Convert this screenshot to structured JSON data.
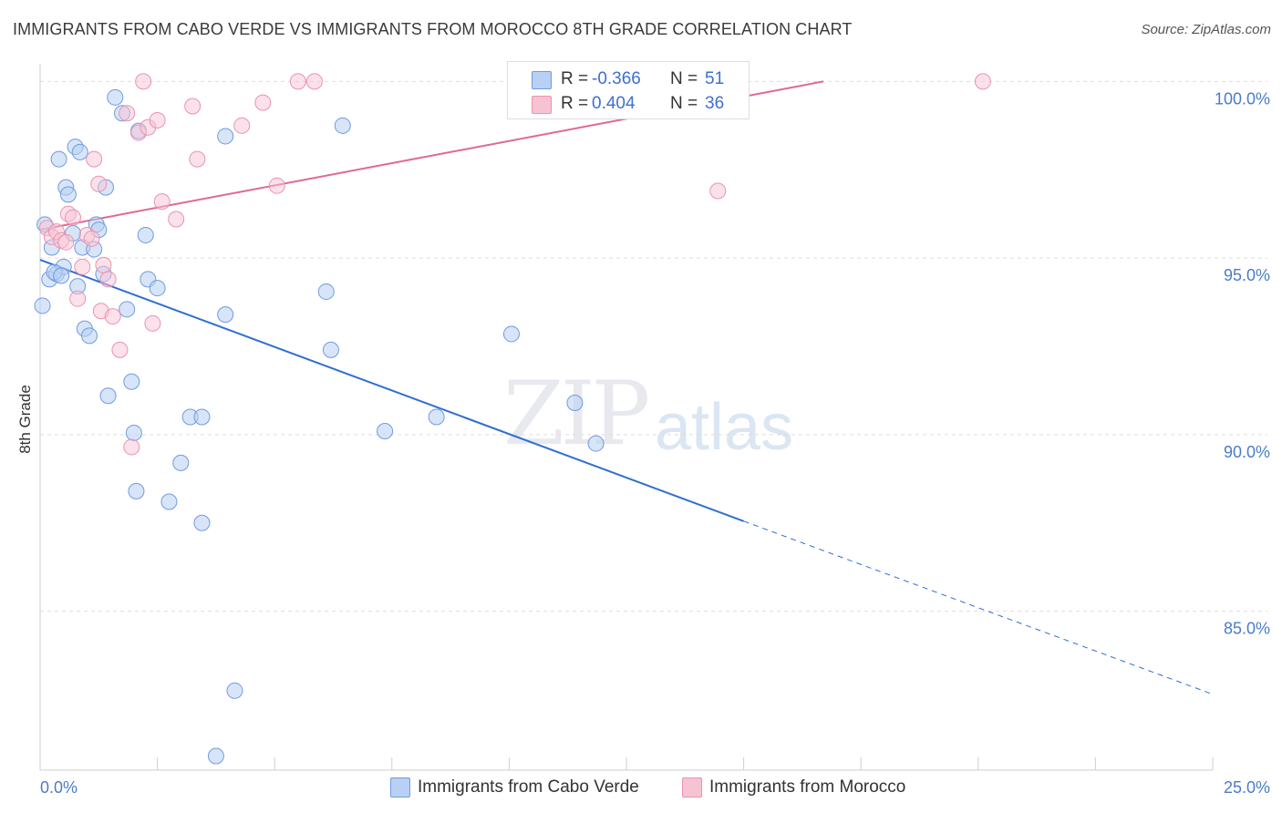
{
  "header": {
    "title": "IMMIGRANTS FROM CABO VERDE VS IMMIGRANTS FROM MOROCCO 8TH GRADE CORRELATION CHART",
    "source": "Source: ZipAtlas.com"
  },
  "watermark": {
    "zip": "ZIP",
    "atlas": "atlas"
  },
  "legend": {
    "rows": [
      {
        "r_label": "R =",
        "r_value": "-0.366",
        "n_label": "N =",
        "n_value": "51"
      },
      {
        "r_label": "R =",
        "r_value": "0.404",
        "n_label": "N =",
        "n_value": "36"
      }
    ]
  },
  "bottom_legend": {
    "cabo_verde": "Immigrants from Cabo Verde",
    "morocco": "Immigrants from Morocco"
  },
  "colors": {
    "cabo_verde_fill": "#b8d0f3",
    "cabo_verde_stroke": "#6f9be0",
    "cabo_verde_line": "#2f6fd0",
    "morocco_fill": "#f7c3d3",
    "morocco_stroke": "#ea93b0",
    "morocco_line": "#e06891",
    "grid": "#dddddd",
    "tick_text": "#4a7cc7"
  },
  "chart_data": {
    "type": "scatter",
    "title": "IMMIGRANTS FROM CABO VERDE VS IMMIGRANTS FROM MOROCCO 8TH GRADE CORRELATION CHART",
    "xlabel": "",
    "ylabel": "8th Grade",
    "xlim": [
      0,
      25
    ],
    "ylim": [
      80.5,
      100.5
    ],
    "x_tick_labels": [
      "0.0%",
      "25.0%"
    ],
    "y_ticks": [
      85,
      90,
      95,
      100
    ],
    "y_tick_labels": [
      "85.0%",
      "90.0%",
      "95.0%",
      "100.0%"
    ],
    "series": [
      {
        "name": "Immigrants from Cabo Verde",
        "r": -0.366,
        "n": 51,
        "points": [
          [
            0.05,
            93.65
          ],
          [
            0.1,
            95.95
          ],
          [
            0.2,
            94.4
          ],
          [
            0.25,
            95.3
          ],
          [
            0.35,
            94.55
          ],
          [
            0.4,
            97.8
          ],
          [
            0.5,
            94.75
          ],
          [
            0.55,
            97.0
          ],
          [
            0.6,
            96.8
          ],
          [
            0.7,
            95.7
          ],
          [
            0.75,
            98.15
          ],
          [
            0.8,
            94.2
          ],
          [
            0.85,
            98.0
          ],
          [
            0.9,
            95.3
          ],
          [
            0.95,
            93.0
          ],
          [
            1.05,
            92.8
          ],
          [
            1.15,
            95.25
          ],
          [
            1.2,
            95.95
          ],
          [
            1.25,
            95.8
          ],
          [
            1.35,
            94.55
          ],
          [
            1.4,
            97.0
          ],
          [
            1.45,
            91.1
          ],
          [
            1.6,
            99.55
          ],
          [
            1.75,
            99.1
          ],
          [
            1.85,
            93.55
          ],
          [
            1.95,
            91.5
          ],
          [
            2.0,
            90.05
          ],
          [
            2.05,
            88.4
          ],
          [
            2.1,
            98.6
          ],
          [
            2.25,
            95.65
          ],
          [
            2.3,
            94.4
          ],
          [
            2.5,
            94.15
          ],
          [
            2.75,
            88.1
          ],
          [
            3.0,
            89.2
          ],
          [
            3.2,
            90.5
          ],
          [
            3.45,
            90.5
          ],
          [
            3.45,
            87.5
          ],
          [
            3.75,
            80.9
          ],
          [
            3.95,
            93.4
          ],
          [
            3.95,
            98.45
          ],
          [
            4.15,
            82.75
          ],
          [
            6.1,
            94.05
          ],
          [
            6.2,
            92.4
          ],
          [
            6.45,
            98.75
          ],
          [
            7.35,
            90.1
          ],
          [
            8.45,
            90.5
          ],
          [
            10.05,
            92.85
          ],
          [
            11.4,
            90.9
          ],
          [
            11.85,
            89.75
          ],
          [
            0.3,
            94.6
          ],
          [
            0.45,
            94.5
          ]
        ]
      },
      {
        "name": "Immigrants from Morocco",
        "r": 0.404,
        "n": 36,
        "points": [
          [
            0.15,
            95.85
          ],
          [
            0.25,
            95.6
          ],
          [
            0.35,
            95.75
          ],
          [
            0.45,
            95.5
          ],
          [
            0.55,
            95.45
          ],
          [
            0.6,
            96.25
          ],
          [
            0.7,
            96.15
          ],
          [
            0.8,
            93.85
          ],
          [
            0.9,
            94.75
          ],
          [
            1.0,
            95.65
          ],
          [
            1.1,
            95.55
          ],
          [
            1.15,
            97.8
          ],
          [
            1.25,
            97.1
          ],
          [
            1.3,
            93.5
          ],
          [
            1.35,
            94.8
          ],
          [
            1.45,
            94.4
          ],
          [
            1.55,
            93.35
          ],
          [
            1.7,
            92.4
          ],
          [
            1.85,
            99.1
          ],
          [
            1.95,
            89.65
          ],
          [
            2.1,
            98.55
          ],
          [
            2.2,
            100.0
          ],
          [
            2.3,
            98.7
          ],
          [
            2.4,
            93.15
          ],
          [
            2.5,
            98.9
          ],
          [
            2.6,
            96.6
          ],
          [
            2.9,
            96.1
          ],
          [
            3.25,
            99.3
          ],
          [
            3.35,
            97.8
          ],
          [
            4.3,
            98.75
          ],
          [
            4.75,
            99.4
          ],
          [
            5.05,
            97.05
          ],
          [
            5.5,
            100.0
          ],
          [
            5.85,
            100.0
          ],
          [
            14.45,
            96.9
          ],
          [
            20.1,
            100.0
          ]
        ]
      }
    ],
    "trend_lines": [
      {
        "series": "Immigrants from Cabo Verde",
        "x_start": 0.0,
        "y_start": 94.95,
        "x_solid_end": 15.0,
        "y_solid_end": 87.55,
        "x_dashed_end": 25.0,
        "y_dashed_end": 82.65
      },
      {
        "series": "Immigrants from Morocco",
        "x_start": 0.0,
        "y_start": 95.8,
        "x_end": 16.7,
        "y_end": 100.0
      }
    ]
  }
}
